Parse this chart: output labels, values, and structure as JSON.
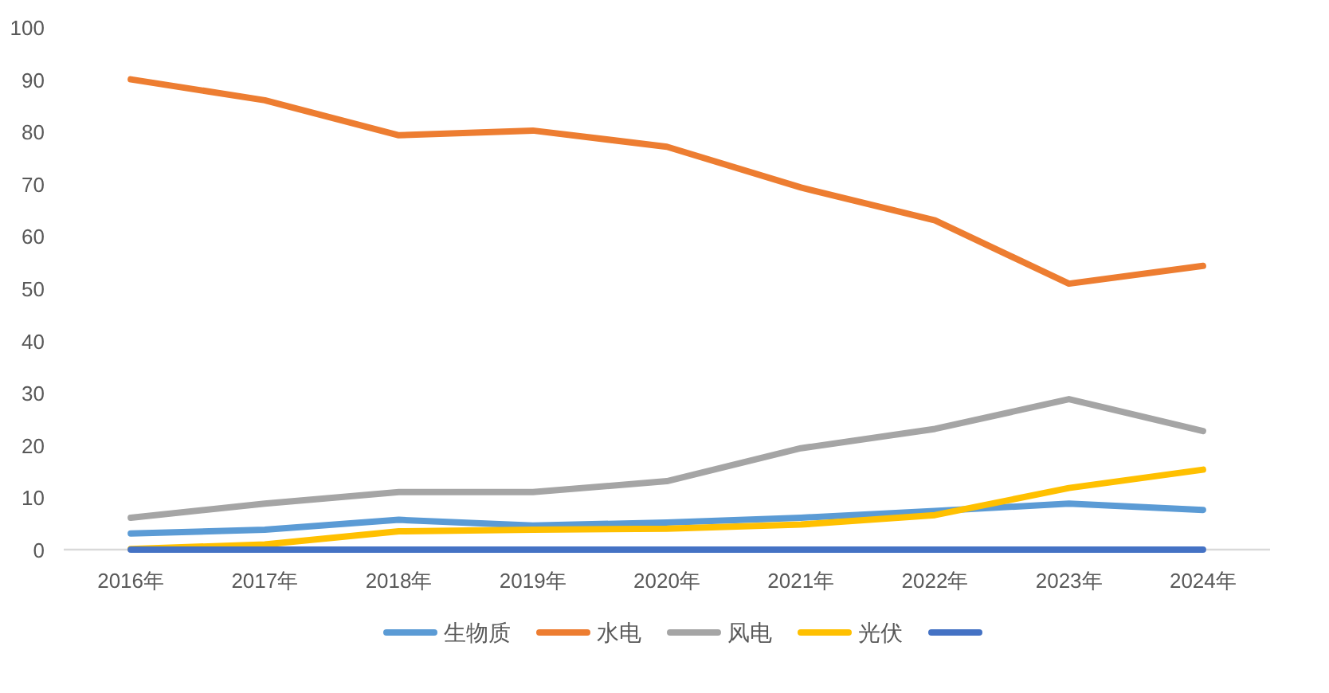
{
  "chart_data": {
    "type": "line",
    "categories": [
      "2016年",
      "2017年",
      "2018年",
      "2019年",
      "2020年",
      "2021年",
      "2022年",
      "2023年",
      "2024年"
    ],
    "ylim": [
      0,
      100
    ],
    "yticks": [
      0,
      10,
      20,
      30,
      40,
      50,
      60,
      70,
      80,
      90,
      100
    ],
    "grid": false,
    "legend": "bottom",
    "marker": "none",
    "line_style": "solid",
    "series": [
      {
        "name": "生物质",
        "color": "#5b9bd5",
        "values": [
          3.1,
          3.8,
          5.7,
          4.6,
          5.2,
          6.1,
          7.4,
          8.8,
          7.6
        ]
      },
      {
        "name": "水电",
        "color": "#ed7d31",
        "values": [
          90,
          86,
          79.3,
          80.2,
          77.1,
          69.3,
          63,
          50.9,
          54.3
        ]
      },
      {
        "name": "风电",
        "color": "#a5a5a5",
        "values": [
          6.1,
          8.8,
          11,
          11,
          13.1,
          19.4,
          23.1,
          28.8,
          22.7
        ]
      },
      {
        "name": "光伏",
        "color": "#ffc000",
        "values": [
          0.1,
          1,
          3.5,
          3.8,
          4,
          4.8,
          6.6,
          11.8,
          15.3
        ]
      },
      {
        "color": "#4472c4",
        "values": [
          0,
          0,
          0,
          0,
          0,
          0,
          0,
          0,
          0
        ]
      }
    ]
  }
}
